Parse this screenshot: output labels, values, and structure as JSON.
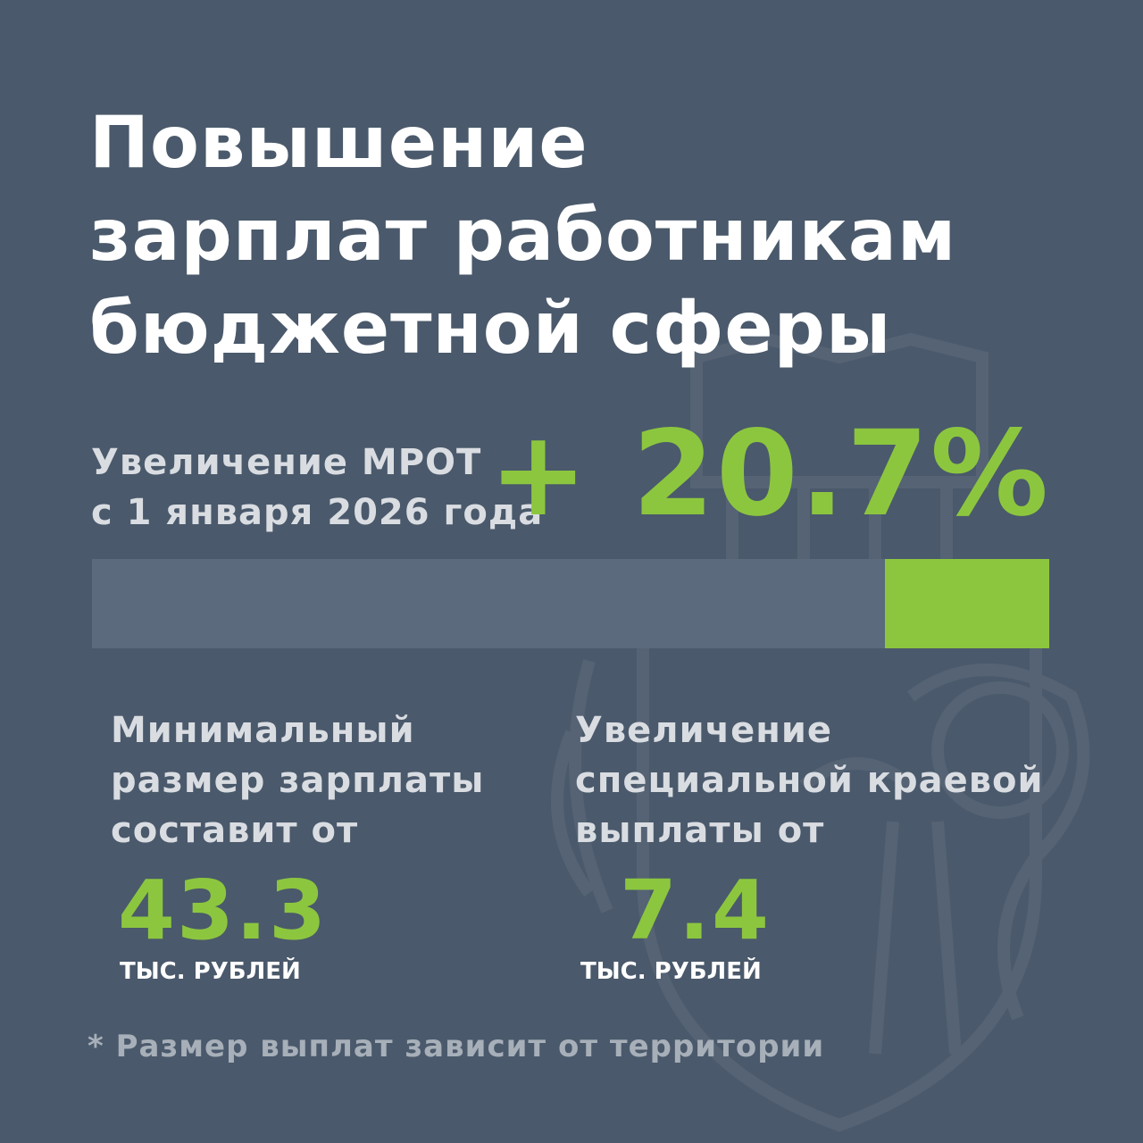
{
  "title": {
    "lines": [
      "Повышение",
      "зарплат работникам",
      "бюджетной сферы"
    ]
  },
  "mrot": {
    "label_lines": [
      "Увеличение МРОТ",
      "с 1 января 2026 года"
    ],
    "value": "+ 20.7%",
    "increase_fraction": 0.207
  },
  "min_salary": {
    "label_lines": [
      "Минимальный",
      "размер зарплаты",
      "составит от"
    ],
    "value": "43.3",
    "unit": "ТЫС. РУБЛЕЙ"
  },
  "special_payment": {
    "label_lines": [
      "Увеличение",
      "специальной краевой",
      "выплаты от"
    ],
    "value": "7.4",
    "unit": "ТЫС. РУБЛЕЙ"
  },
  "footnote": "* Размер выплат зависит от территории",
  "colors": {
    "background": "#4a596b",
    "accent": "#8cc63f",
    "bar_track": "#5b6a7c",
    "muted_text": "#d9dde2"
  },
  "decor": {
    "watermark": "coat-of-arms-lion-icon"
  }
}
